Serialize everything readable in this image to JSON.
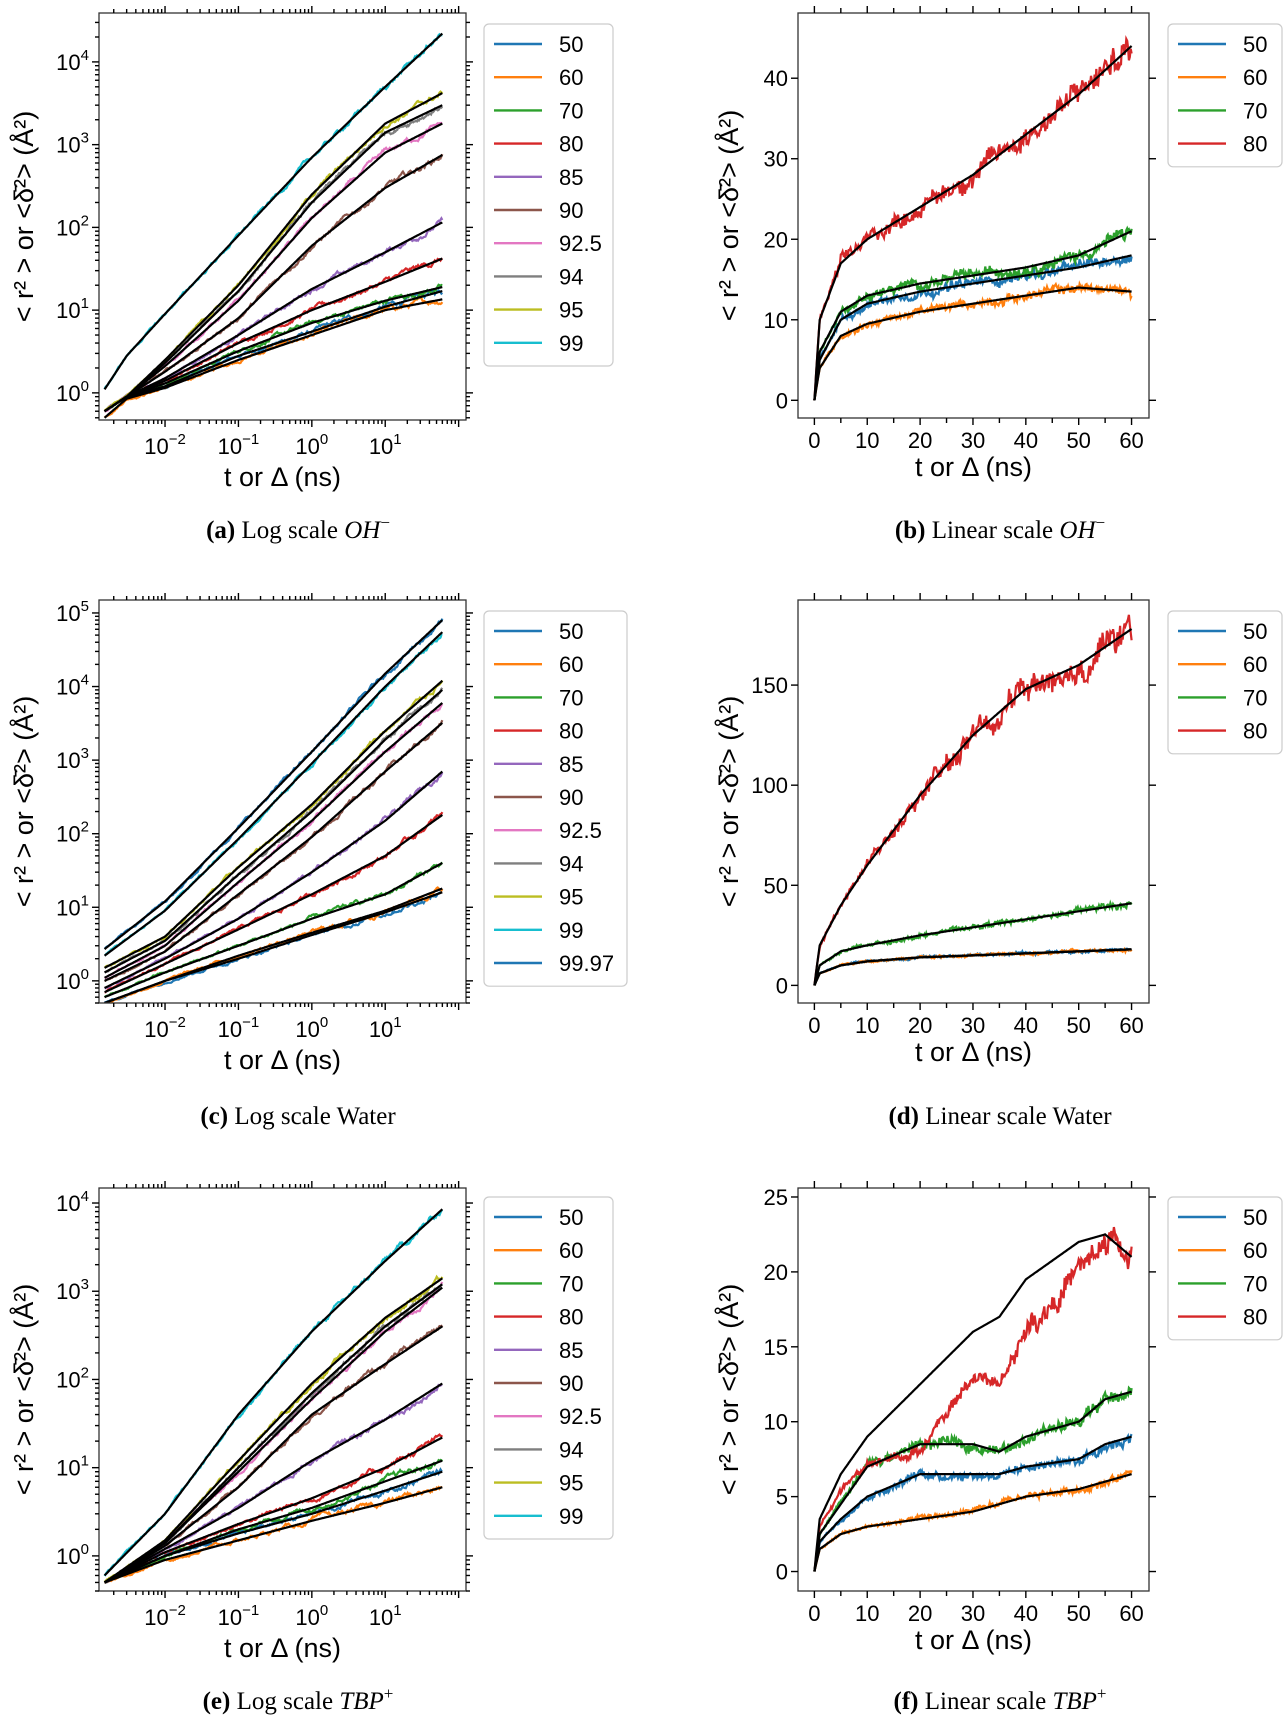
{
  "chart_data": [
    {
      "id": "a",
      "type": "line",
      "xscale": "log",
      "yscale": "log",
      "caption": {
        "letter": "(a)",
        "text": "Log scale",
        "species": "OH",
        "sup": "−"
      },
      "xlabel": "t or Δ (ns)",
      "ylabel": "< r² >  or  <δ̄²> (Å²)",
      "xlim": [
        0.00126,
        126
      ],
      "ylim": [
        0.47,
        39000
      ],
      "xticks": [
        0.01,
        0.1,
        1,
        10
      ],
      "xticklabels": [
        "10^-2",
        "10^-1",
        "10^0",
        "10^1"
      ],
      "yticks": [
        1,
        10,
        100,
        1000,
        10000
      ],
      "yticklabels": [
        "10^0",
        "10^1",
        "10^2",
        "10^3",
        "10^4"
      ],
      "legend": "outside-right",
      "x": [
        0.0015,
        0.003,
        0.01,
        0.1,
        1,
        10,
        60
      ],
      "series": [
        {
          "name": "50",
          "color": "#1f77b4",
          "values": [
            0.6,
            0.9,
            1.2,
            2.8,
            5.5,
            11,
            17
          ]
        },
        {
          "name": "60",
          "color": "#ff7f0e",
          "values": [
            0.5,
            0.85,
            1.15,
            2.5,
            5,
            10,
            13.5
          ]
        },
        {
          "name": "70",
          "color": "#2ca02c",
          "values": [
            0.6,
            0.9,
            1.3,
            3.2,
            7,
            13,
            19
          ]
        },
        {
          "name": "80",
          "color": "#d62728",
          "values": [
            0.6,
            0.9,
            1.4,
            4,
            10,
            22,
            42
          ]
        },
        {
          "name": "85",
          "color": "#9467bd",
          "values": [
            0.6,
            0.9,
            1.5,
            5,
            18,
            50,
            115
          ]
        },
        {
          "name": "90",
          "color": "#8c564b",
          "values": [
            0.6,
            0.9,
            1.8,
            8,
            60,
            300,
            750
          ]
        },
        {
          "name": "92.5",
          "color": "#e377c2",
          "values": [
            0.6,
            0.9,
            2.1,
            13,
            130,
            800,
            1800
          ]
        },
        {
          "name": "94",
          "color": "#7f7f7f",
          "values": [
            0.6,
            0.9,
            2.3,
            17,
            200,
            1400,
            3000
          ]
        },
        {
          "name": "95",
          "color": "#bcbd22",
          "values": [
            0.6,
            0.9,
            2.5,
            20,
            250,
            1800,
            4200
          ]
        },
        {
          "name": "99",
          "color": "#17becf",
          "values": [
            1.1,
            2.8,
            9,
            80,
            700,
            5000,
            22000
          ]
        }
      ]
    },
    {
      "id": "b",
      "type": "line",
      "xscale": "linear",
      "yscale": "linear",
      "caption": {
        "letter": "(b)",
        "text": "Linear scale",
        "species": "OH",
        "sup": "−"
      },
      "xlabel": "t or Δ (ns)",
      "ylabel": "< r² >  or  <δ̄²> (Å²)",
      "xlim": [
        -3.1,
        63.3
      ],
      "ylim": [
        -2.2,
        48.1
      ],
      "xticks": [
        0,
        10,
        20,
        30,
        40,
        50,
        60
      ],
      "xticklabels": [
        "0",
        "10",
        "20",
        "30",
        "40",
        "50",
        "60"
      ],
      "yticks": [
        0,
        10,
        20,
        30,
        40
      ],
      "yticklabels": [
        "0",
        "10",
        "20",
        "30",
        "40"
      ],
      "legend": "outside-right",
      "x": [
        0,
        1,
        5,
        10,
        20,
        30,
        40,
        50,
        60
      ],
      "series": [
        {
          "name": "50",
          "color": "#1f77b4",
          "values": [
            0,
            5,
            10,
            12,
            13.5,
            14.5,
            15.5,
            16.5,
            18
          ]
        },
        {
          "name": "60",
          "color": "#ff7f0e",
          "values": [
            0,
            4,
            8,
            9.5,
            11,
            12,
            13,
            14,
            13.5
          ]
        },
        {
          "name": "70",
          "color": "#2ca02c",
          "values": [
            0,
            6,
            11,
            13,
            14.5,
            15.5,
            16.5,
            18,
            21
          ]
        },
        {
          "name": "80",
          "color": "#d62728",
          "values": [
            0,
            10,
            17,
            20,
            24,
            28,
            33,
            38,
            44
          ]
        }
      ]
    },
    {
      "id": "c",
      "type": "line",
      "xscale": "log",
      "yscale": "log",
      "caption": {
        "letter": "(c)",
        "text": "Log scale Water",
        "species": "",
        "sup": ""
      },
      "xlabel": "t or Δ (ns)",
      "ylabel": "< r² >  or  <δ̄²> (Å²)",
      "xlim": [
        0.00126,
        126
      ],
      "ylim": [
        0.5,
        150000
      ],
      "xticks": [
        0.01,
        0.1,
        1,
        10
      ],
      "xticklabels": [
        "10^-2",
        "10^-1",
        "10^0",
        "10^1"
      ],
      "yticks": [
        1,
        10,
        100,
        1000,
        10000,
        100000
      ],
      "yticklabels": [
        "10^0",
        "10^1",
        "10^2",
        "10^3",
        "10^4",
        "10^5"
      ],
      "legend": "outside-right",
      "x": [
        0.0015,
        0.01,
        0.1,
        1,
        10,
        60
      ],
      "series": [
        {
          "name": "50",
          "color": "#1f77b4",
          "values": [
            0.5,
            1.0,
            2.0,
            4.2,
            8.5,
            16
          ]
        },
        {
          "name": "60",
          "color": "#ff7f0e",
          "values": [
            0.5,
            1.0,
            2.2,
            4.5,
            9,
            18
          ]
        },
        {
          "name": "70",
          "color": "#2ca02c",
          "values": [
            0.6,
            1.3,
            3,
            7,
            15,
            40
          ]
        },
        {
          "name": "80",
          "color": "#d62728",
          "values": [
            0.7,
            1.7,
            5,
            15,
            50,
            180
          ]
        },
        {
          "name": "85",
          "color": "#9467bd",
          "values": [
            0.8,
            2,
            7,
            30,
            150,
            700
          ]
        },
        {
          "name": "90",
          "color": "#8c564b",
          "values": [
            1,
            2.5,
            15,
            90,
            700,
            3200
          ]
        },
        {
          "name": "92.5",
          "color": "#e377c2",
          "values": [
            1.1,
            3,
            22,
            150,
            1300,
            6000
          ]
        },
        {
          "name": "94",
          "color": "#7f7f7f",
          "values": [
            1.3,
            3.5,
            28,
            200,
            1900,
            9000
          ]
        },
        {
          "name": "95",
          "color": "#bcbd22",
          "values": [
            1.5,
            4,
            35,
            250,
            2500,
            12000
          ]
        },
        {
          "name": "99",
          "color": "#17becf",
          "values": [
            2.2,
            9,
            85,
            900,
            10000,
            55000
          ]
        },
        {
          "name": "99.97",
          "color": "#1f77b4",
          "values": [
            2.7,
            12,
            120,
            1300,
            15000,
            80000
          ]
        }
      ]
    },
    {
      "id": "d",
      "type": "line",
      "xscale": "linear",
      "yscale": "linear",
      "caption": {
        "letter": "(d)",
        "text": "Linear scale Water",
        "species": "",
        "sup": ""
      },
      "xlabel": "t or Δ (ns)",
      "ylabel": "< r² >  or  <δ̄²> (Å²)",
      "xlim": [
        -3.1,
        63.3
      ],
      "ylim": [
        -8.8,
        192.5
      ],
      "xticks": [
        0,
        10,
        20,
        30,
        40,
        50,
        60
      ],
      "xticklabels": [
        "0",
        "10",
        "20",
        "30",
        "40",
        "50",
        "60"
      ],
      "yticks": [
        0,
        50,
        100,
        150
      ],
      "yticklabels": [
        "0",
        "50",
        "100",
        "150"
      ],
      "legend": "outside-right",
      "x": [
        0,
        1,
        5,
        10,
        20,
        30,
        40,
        50,
        60
      ],
      "series": [
        {
          "name": "50",
          "color": "#1f77b4",
          "values": [
            0,
            6,
            10,
            12,
            14,
            15,
            16,
            17,
            18
          ]
        },
        {
          "name": "60",
          "color": "#ff7f0e",
          "values": [
            0,
            6,
            10,
            12,
            14,
            15,
            16,
            17,
            18
          ]
        },
        {
          "name": "70",
          "color": "#2ca02c",
          "values": [
            0,
            10,
            17,
            20,
            25,
            29,
            33,
            37,
            41
          ]
        },
        {
          "name": "80",
          "color": "#d62728",
          "values": [
            0,
            20,
            40,
            60,
            95,
            125,
            148,
            160,
            178
          ]
        }
      ]
    },
    {
      "id": "e",
      "type": "line",
      "xscale": "log",
      "yscale": "log",
      "caption": {
        "letter": "(e)",
        "text": "Log scale",
        "species": "TBP",
        "sup": "+"
      },
      "xlabel": "t or Δ (ns)",
      "ylabel": "< r² >  or  <δ̄²> (Å²)",
      "xlim": [
        0.00126,
        126
      ],
      "ylim": [
        0.4,
        14800
      ],
      "xticks": [
        0.01,
        0.1,
        1,
        10
      ],
      "xticklabels": [
        "10^-2",
        "10^-1",
        "10^0",
        "10^1"
      ],
      "yticks": [
        1,
        10,
        100,
        1000,
        10000
      ],
      "yticklabels": [
        "10^0",
        "10^1",
        "10^2",
        "10^3",
        "10^4"
      ],
      "legend": "outside-right",
      "x": [
        0.0015,
        0.01,
        0.1,
        1,
        10,
        60
      ],
      "series": [
        {
          "name": "50",
          "color": "#1f77b4",
          "values": [
            0.5,
            1.0,
            1.8,
            3,
            5.5,
            9
          ]
        },
        {
          "name": "60",
          "color": "#ff7f0e",
          "values": [
            0.5,
            0.9,
            1.5,
            2.5,
            4,
            6
          ]
        },
        {
          "name": "70",
          "color": "#2ca02c",
          "values": [
            0.5,
            1.0,
            2,
            3.5,
            7,
            12
          ]
        },
        {
          "name": "80",
          "color": "#d62728",
          "values": [
            0.5,
            1.1,
            2.3,
            4.5,
            10,
            22
          ]
        },
        {
          "name": "85",
          "color": "#9467bd",
          "values": [
            0.5,
            1.2,
            3.5,
            12,
            35,
            90
          ]
        },
        {
          "name": "90",
          "color": "#8c564b",
          "values": [
            0.5,
            1.3,
            6,
            40,
            150,
            400
          ]
        },
        {
          "name": "92.5",
          "color": "#e377c2",
          "values": [
            0.5,
            1.4,
            9,
            60,
            350,
            1100
          ]
        },
        {
          "name": "94",
          "color": "#7f7f7f",
          "values": [
            0.5,
            1.4,
            10,
            70,
            400,
            1200
          ]
        },
        {
          "name": "95",
          "color": "#bcbd22",
          "values": [
            0.5,
            1.5,
            12,
            90,
            500,
            1400
          ]
        },
        {
          "name": "99",
          "color": "#17becf",
          "values": [
            0.6,
            3,
            40,
            350,
            2200,
            8500
          ]
        }
      ]
    },
    {
      "id": "f",
      "type": "line",
      "xscale": "linear",
      "yscale": "linear",
      "caption": {
        "letter": "(f)",
        "text": "Linear scale",
        "species": "TBP",
        "sup": "+"
      },
      "xlabel": "t or Δ (ns)",
      "ylabel": "< r² >  or  <δ̄²> (Å²)",
      "xlim": [
        -3.1,
        63.3
      ],
      "ylim": [
        -1.3,
        25.6
      ],
      "xticks": [
        0,
        10,
        20,
        30,
        40,
        50,
        60
      ],
      "xticklabels": [
        "0",
        "10",
        "20",
        "30",
        "40",
        "50",
        "60"
      ],
      "yticks": [
        0,
        5,
        10,
        15,
        20,
        25
      ],
      "yticklabels": [
        "0",
        "5",
        "10",
        "15",
        "20",
        "25"
      ],
      "legend": "outside-right",
      "x": [
        0,
        1,
        5,
        10,
        20,
        30,
        35,
        40,
        50,
        55,
        60
      ],
      "series": [
        {
          "name": "50",
          "color": "#1f77b4",
          "values": [
            0,
            2,
            3.5,
            5,
            6.5,
            6.5,
            6.5,
            7,
            7.5,
            8.5,
            9
          ]
        },
        {
          "name": "60",
          "color": "#ff7f0e",
          "values": [
            0,
            1.5,
            2.5,
            3,
            3.5,
            4,
            4.5,
            5,
            5.5,
            6,
            6.5
          ]
        },
        {
          "name": "70",
          "color": "#2ca02c",
          "values": [
            0,
            2.5,
            4.5,
            7,
            8.5,
            8.5,
            8,
            9,
            10,
            11.5,
            12
          ]
        },
        {
          "name": "80",
          "color": "#d62728",
          "values": [
            0,
            3,
            5.5,
            7,
            8,
            13,
            12.5,
            16,
            20,
            22,
            21
          ],
          "fit": [
            0,
            3.5,
            6.5,
            9,
            12.5,
            16,
            17,
            19.5,
            22,
            22.5,
            21
          ]
        }
      ]
    }
  ]
}
